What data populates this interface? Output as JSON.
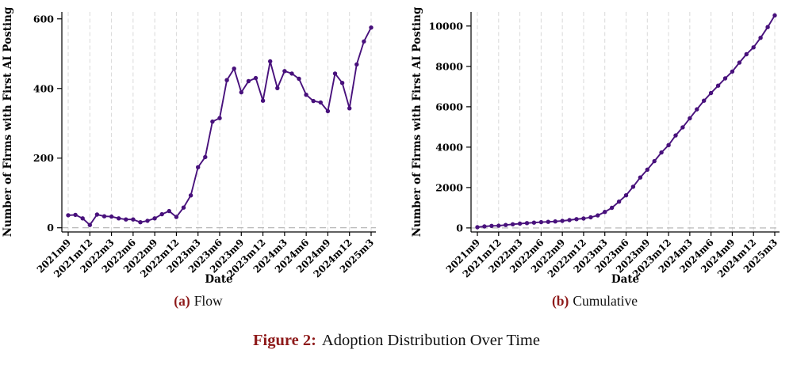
{
  "figure": {
    "caption_label": "Figure 2:",
    "caption_text": "Adoption Distribution Over Time"
  },
  "panels": [
    {
      "tag": "(a)",
      "title": "Flow"
    },
    {
      "tag": "(b)",
      "title": "Cumulative"
    }
  ],
  "colors": {
    "line": "#48117c",
    "marker": "#48117c",
    "grid": "#d9d9d9",
    "zero_line": "#b0b0b0",
    "axis": "#000000",
    "accent_red": "#8e1a1a",
    "text": "#111111"
  },
  "chart_data": [
    {
      "type": "line",
      "panel": "a",
      "title": "Flow",
      "xlabel": "Date",
      "ylabel": "Number of Firms with First AI Posting",
      "x": [
        "2021m9",
        "2021m10",
        "2021m11",
        "2021m12",
        "2022m1",
        "2022m2",
        "2022m3",
        "2022m4",
        "2022m5",
        "2022m6",
        "2022m7",
        "2022m8",
        "2022m9",
        "2022m10",
        "2022m11",
        "2022m12",
        "2023m1",
        "2023m2",
        "2023m3",
        "2023m4",
        "2023m5",
        "2023m6",
        "2023m7",
        "2023m8",
        "2023m9",
        "2023m10",
        "2023m11",
        "2023m12",
        "2024m1",
        "2024m2",
        "2024m3",
        "2024m4",
        "2024m5",
        "2024m6",
        "2024m7",
        "2024m8",
        "2024m9",
        "2024m10",
        "2024m11",
        "2024m12",
        "2025m1",
        "2025m2",
        "2025m3"
      ],
      "values": [
        36,
        37,
        27,
        8,
        38,
        33,
        32,
        27,
        24,
        24,
        16,
        20,
        27,
        39,
        48,
        31,
        58,
        93,
        174,
        203,
        305,
        315,
        424,
        457,
        389,
        421,
        430,
        365,
        478,
        401,
        450,
        443,
        428,
        382,
        364,
        360,
        335,
        443,
        416,
        343,
        469,
        535,
        575
      ],
      "xtick_labels": [
        "2021m9",
        "2021m12",
        "2022m3",
        "2022m6",
        "2022m9",
        "2022m12",
        "2023m3",
        "2023m6",
        "2023m9",
        "2023m12",
        "2024m3",
        "2024m6",
        "2024m9",
        "2024m12",
        "2025m3"
      ],
      "xtick_every": 3,
      "yticks": [
        0,
        200,
        400,
        600
      ],
      "ylim": [
        -12,
        620
      ],
      "grid": "vertical-dashed",
      "zero_reference_line_dashed": true,
      "legend": "none",
      "marker": "circle"
    },
    {
      "type": "line",
      "panel": "b",
      "title": "Cumulative",
      "xlabel": "Date",
      "ylabel": "Number of Firms with First AI Posting",
      "x": [
        "2021m9",
        "2021m10",
        "2021m11",
        "2021m12",
        "2022m1",
        "2022m2",
        "2022m3",
        "2022m4",
        "2022m5",
        "2022m6",
        "2022m7",
        "2022m8",
        "2022m9",
        "2022m10",
        "2022m11",
        "2022m12",
        "2023m1",
        "2023m2",
        "2023m3",
        "2023m4",
        "2023m5",
        "2023m6",
        "2023m7",
        "2023m8",
        "2023m9",
        "2023m10",
        "2023m11",
        "2023m12",
        "2024m1",
        "2024m2",
        "2024m3",
        "2024m4",
        "2024m5",
        "2024m6",
        "2024m7",
        "2024m8",
        "2024m9",
        "2024m10",
        "2024m11",
        "2024m12",
        "2025m1",
        "2025m2",
        "2025m3"
      ],
      "values": [
        36,
        73,
        100,
        108,
        146,
        179,
        211,
        238,
        262,
        286,
        302,
        322,
        349,
        388,
        436,
        467,
        525,
        618,
        792,
        995,
        1300,
        1615,
        2039,
        2496,
        2885,
        3306,
        3736,
        4101,
        4579,
        4980,
        5430,
        5873,
        6301,
        6683,
        7047,
        7407,
        7742,
        8185,
        8601,
        8944,
        9413,
        9948,
        10523
      ],
      "xtick_labels": [
        "2021m9",
        "2021m12",
        "2022m3",
        "2022m6",
        "2022m9",
        "2022m12",
        "2023m3",
        "2023m6",
        "2023m9",
        "2023m12",
        "2024m3",
        "2024m6",
        "2024m9",
        "2024m12",
        "2025m3"
      ],
      "xtick_every": 3,
      "yticks": [
        0,
        2000,
        4000,
        6000,
        8000,
        10000
      ],
      "ylim": [
        -200,
        10700
      ],
      "grid": "vertical-dashed",
      "zero_reference_line_dashed": true,
      "legend": "none",
      "marker": "circle"
    }
  ]
}
